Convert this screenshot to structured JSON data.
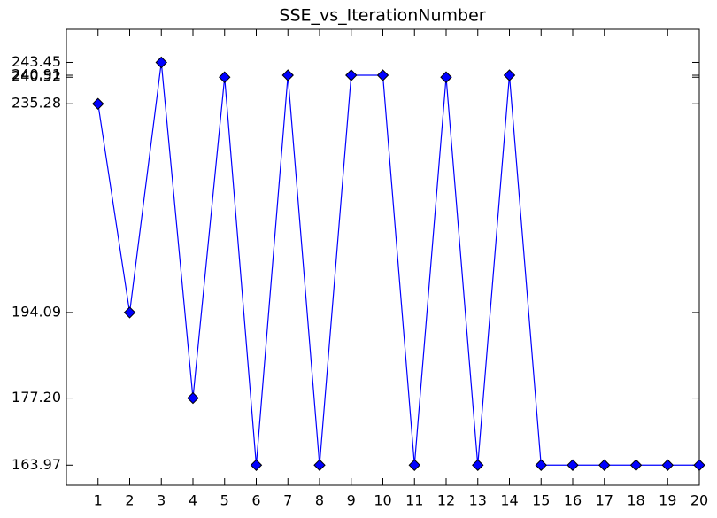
{
  "chart_data": {
    "type": "line",
    "title": "SSE_vs_IterationNumber",
    "x": [
      1,
      2,
      3,
      4,
      5,
      6,
      7,
      8,
      9,
      10,
      11,
      12,
      13,
      14,
      15,
      16,
      17,
      18,
      19,
      20
    ],
    "series": [
      {
        "color": "#0000ff",
        "values": [
          235.28,
          194.09,
          243.45,
          177.2,
          240.52,
          163.97,
          240.91,
          163.97,
          240.91,
          240.91,
          163.97,
          240.52,
          163.97,
          240.91,
          163.97,
          163.97,
          163.97,
          163.97,
          163.97,
          163.97
        ]
      }
    ],
    "xlim": [
      0,
      20
    ],
    "xticks": [
      1,
      2,
      3,
      4,
      5,
      6,
      7,
      8,
      9,
      10,
      11,
      12,
      13,
      14,
      15,
      16,
      17,
      18,
      19,
      20
    ],
    "ylim": [
      160,
      250
    ],
    "yticks": [
      163.97,
      {
        "value": 177.2,
        "label": "177.20"
      },
      194.09,
      235.28,
      240.52,
      240.91,
      243.45
    ]
  }
}
